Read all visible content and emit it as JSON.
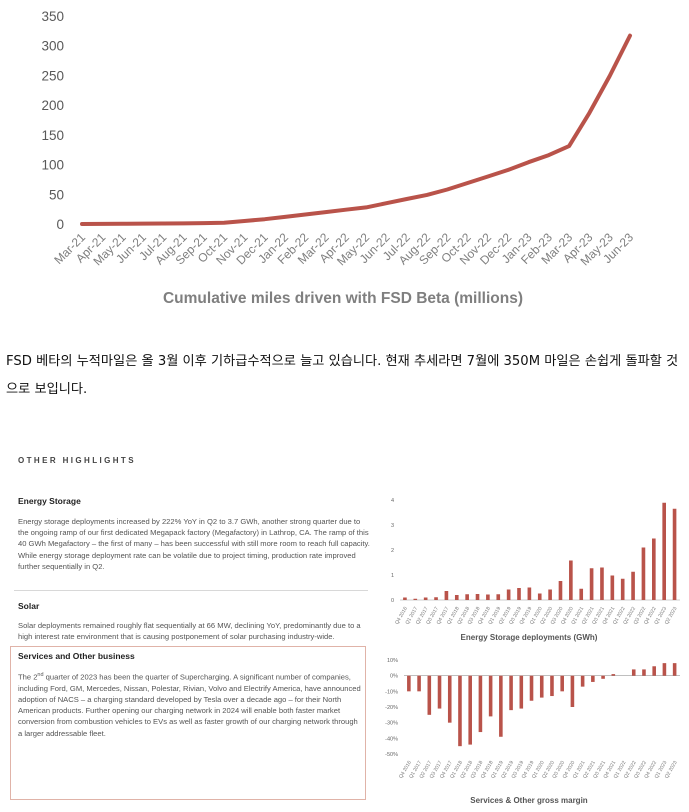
{
  "chart_data": [
    {
      "type": "line",
      "title": "Cumulative miles driven with FSD Beta (millions)",
      "categories": [
        "Mar-21",
        "Apr-21",
        "May-21",
        "Jun-21",
        "Jul-21",
        "Aug-21",
        "Sep-21",
        "Oct-21",
        "Nov-21",
        "Dec-21",
        "Jan-22",
        "Feb-22",
        "Mar-22",
        "Apr-22",
        "May-22",
        "Jun-22",
        "Jul-22",
        "Aug-22",
        "Sep-22",
        "Oct-22",
        "Nov-22",
        "Dec-22",
        "Jan-23",
        "Feb-23",
        "Mar-23",
        "Apr-23",
        "May-23",
        "Jun-23"
      ],
      "values": [
        0,
        0.2,
        0.4,
        0.6,
        0.8,
        1,
        1.5,
        2,
        5,
        8,
        12,
        16,
        20,
        24,
        28,
        35,
        42,
        49,
        58,
        69,
        80,
        91,
        104,
        116,
        131,
        187,
        249,
        317
      ],
      "ylim": [
        0,
        350
      ],
      "yticks": [
        0,
        50,
        100,
        150,
        200,
        250,
        300,
        350
      ],
      "color": "#b9534a"
    },
    {
      "type": "bar",
      "title": "Energy Storage deployments (GWh)",
      "categories": [
        "Q4 2016",
        "Q1 2017",
        "Q2 2017",
        "Q3 2017",
        "Q4 2017",
        "Q1 2018",
        "Q2 2018",
        "Q3 2018",
        "Q4 2018",
        "Q1 2019",
        "Q2 2019",
        "Q3 2019",
        "Q4 2019",
        "Q1 2020",
        "Q2 2020",
        "Q3 2020",
        "Q4 2020",
        "Q1 2021",
        "Q2 2021",
        "Q3 2021",
        "Q4 2021",
        "Q1 2022",
        "Q2 2022",
        "Q3 2022",
        "Q4 2022",
        "Q1 2023",
        "Q2 2023"
      ],
      "values": [
        0.1,
        0.05,
        0.1,
        0.11,
        0.36,
        0.2,
        0.23,
        0.24,
        0.22,
        0.23,
        0.42,
        0.48,
        0.5,
        0.26,
        0.42,
        0.76,
        1.58,
        0.45,
        1.27,
        1.3,
        0.98,
        0.85,
        1.13,
        2.1,
        2.46,
        3.89,
        3.65
      ],
      "ylim": [
        0,
        4
      ],
      "yticks": [
        0,
        1,
        2,
        3,
        4
      ],
      "color": "#b9534a"
    },
    {
      "type": "bar",
      "title": "Services & Other gross margin",
      "categories": [
        "Q4 2016",
        "Q1 2017",
        "Q2 2017",
        "Q3 2017",
        "Q4 2017",
        "Q1 2018",
        "Q2 2018",
        "Q3 2018",
        "Q4 2018",
        "Q1 2019",
        "Q2 2019",
        "Q3 2019",
        "Q4 2019",
        "Q1 2020",
        "Q2 2020",
        "Q3 2020",
        "Q4 2020",
        "Q1 2021",
        "Q2 2021",
        "Q3 2021",
        "Q4 2021",
        "Q1 2022",
        "Q2 2022",
        "Q3 2022",
        "Q4 2022",
        "Q1 2023",
        "Q2 2023"
      ],
      "values": [
        -10,
        -10,
        -25,
        -21,
        -30,
        -45,
        -44,
        -36,
        -26,
        -39,
        -22,
        -21,
        -16,
        -14,
        -13,
        -10,
        -20,
        -7,
        -4,
        -2,
        1,
        0,
        4,
        4,
        6,
        8,
        8
      ],
      "ylim": [
        -50,
        10
      ],
      "yticks": [
        10,
        0,
        -10,
        -20,
        -30,
        -40,
        -50
      ],
      "tick_suffix": "%",
      "color": "#b9534a"
    }
  ],
  "korean_text": "FSD 베타의 누적마일은 올 3월 이후 기하급수적으로 늘고 있습니다. 현재 추세라면 7월에 350M 마일은 손쉽게 돌파할 것으로 보입니다.",
  "highlights": {
    "header": "OTHER HIGHLIGHTS",
    "energy": {
      "title": "Energy Storage",
      "body": "Energy storage deployments increased by 222% YoY in Q2 to 3.7 GWh, another strong quarter due to the ongoing ramp of our first dedicated Megapack factory (Megafactory) in Lathrop, CA. The ramp of this 40 GWh Megafactory – the first of many – has been successful with still more room to reach full capacity. While energy storage deployment rate can be volatile due to project timing, production rate improved further sequentially in Q2."
    },
    "solar": {
      "title": "Solar",
      "body": "Solar deployments remained roughly flat sequentially at 66 MW, declining YoY, predominantly due to a high interest rate environment that is causing postponement of solar purchasing industry-wide."
    },
    "services": {
      "title": "Services and Other business",
      "body_prefix": "The 2",
      "body_sup": "nd",
      "body": " quarter of 2023 has been the quarter of Supercharging. A significant number of companies, including Ford, GM, Mercedes, Nissan, Polestar, Rivian, Volvo and Electrify America, have announced adoption of NACS – a charging standard developed by Tesla over a decade ago – for their North American products. Further opening our charging network in 2024 will enable both faster market conversion from combustion vehicles to EVs as well as faster growth of our charging network through a larger addressable fleet."
    }
  }
}
